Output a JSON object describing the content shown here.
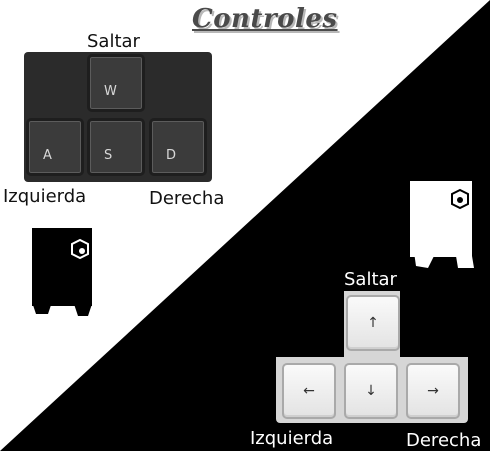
{
  "title": "Controles",
  "top_cluster": {
    "jump_label": "Saltar",
    "left_label": "Izquierda",
    "right_label": "Derecha",
    "keys": {
      "up": "W",
      "left": "A",
      "down": "S",
      "right": "D"
    }
  },
  "bottom_cluster": {
    "jump_label": "Saltar",
    "left_label": "Izquierda",
    "right_label": "Derecha",
    "keys": {
      "up": "↑",
      "left": "←",
      "down": "↓",
      "right": "→"
    }
  },
  "colors": {
    "dark_bg": "#000000",
    "light_bg": "#ffffff",
    "key_dark": "#3b3b3b",
    "key_light": "#ececec"
  }
}
